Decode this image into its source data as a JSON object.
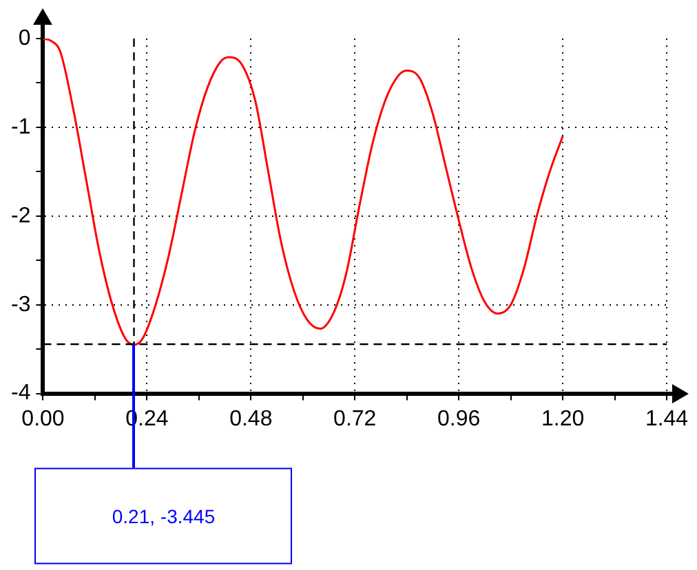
{
  "chart_data": {
    "type": "line",
    "series": [
      {
        "color": "#ff0000",
        "x": [
          0,
          0.02,
          0.04,
          0.07,
          0.1,
          0.13,
          0.16,
          0.19,
          0.21,
          0.23,
          0.26,
          0.29,
          0.32,
          0.35,
          0.38,
          0.41,
          0.43,
          0.46,
          0.49,
          0.52,
          0.55,
          0.58,
          0.61,
          0.64,
          0.67,
          0.7,
          0.73,
          0.76,
          0.79,
          0.82,
          0.84,
          0.87,
          0.9,
          0.93,
          0.96,
          0.99,
          1.02,
          1.05,
          1.08,
          1.11,
          1.14,
          1.17,
          1.2
        ],
        "values": [
          0,
          -0.03,
          -0.15,
          -0.8,
          -1.6,
          -2.4,
          -3.0,
          -3.38,
          -3.45,
          -3.38,
          -3.0,
          -2.45,
          -1.75,
          -1.05,
          -0.55,
          -0.26,
          -0.21,
          -0.3,
          -0.7,
          -1.5,
          -2.3,
          -2.85,
          -3.17,
          -3.27,
          -3.1,
          -2.65,
          -1.9,
          -1.2,
          -0.7,
          -0.42,
          -0.36,
          -0.45,
          -0.85,
          -1.45,
          -2.05,
          -2.6,
          -2.97,
          -3.1,
          -3.0,
          -2.6,
          -2.0,
          -1.5,
          -1.1
        ]
      }
    ],
    "xlim": [
      0,
      1.44
    ],
    "xticks": [
      {
        "value": 0,
        "label": "0.00"
      },
      {
        "value": 0.12,
        "label": null
      },
      0.24,
      {
        "value": 0.36,
        "label": null
      },
      0.48,
      {
        "value": 0.6,
        "label": null
      },
      0.72,
      {
        "value": 0.84,
        "label": null
      },
      0.96,
      {
        "value": 1.08,
        "label": null
      },
      {
        "value": 1.2,
        "label": "1.20"
      },
      {
        "value": 1.32,
        "label": null
      },
      1.44
    ],
    "ylim": [
      -4,
      0
    ],
    "yticks": [
      -4,
      {
        "value": -3.5,
        "label": null
      },
      -3,
      {
        "value": -2.5,
        "label": null
      },
      -2,
      {
        "value": -1.5,
        "label": null
      },
      -1,
      {
        "value": -0.5,
        "label": null
      },
      0
    ],
    "grid": true,
    "legend": false,
    "ref_lines": [
      {
        "axis": "x",
        "value": 0.21,
        "color": "#000000",
        "line_style": "dashed"
      },
      {
        "axis": "y",
        "value": -3.445,
        "color": "#000000",
        "line_style": "dashed"
      }
    ],
    "annotations": [
      "0.21, -3.445"
    ]
  }
}
